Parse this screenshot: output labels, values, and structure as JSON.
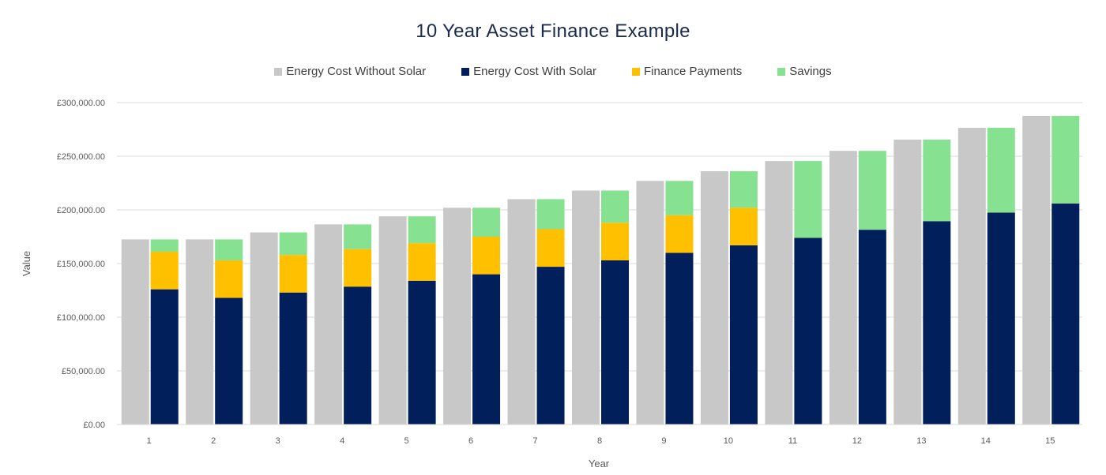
{
  "chart_data": {
    "type": "bar",
    "title": "10 Year Asset Finance Example",
    "xlabel": "Year",
    "ylabel": "Value",
    "ylim": [
      0,
      300000
    ],
    "yticks": [
      "£0.00",
      "£50,000.00",
      "£100,000.00",
      "£150,000.00",
      "£200,000.00",
      "£250,000.00",
      "£300,000.00"
    ],
    "ytick_values": [
      0,
      50000,
      100000,
      150000,
      200000,
      250000,
      300000
    ],
    "grid": true,
    "legend_position": "top",
    "categories": [
      "1",
      "2",
      "3",
      "4",
      "5",
      "6",
      "7",
      "8",
      "9",
      "10",
      "11",
      "12",
      "13",
      "14",
      "15"
    ],
    "series": [
      {
        "name": "Energy Cost Without Solar",
        "color": "#c8c8c8",
        "stack": "a",
        "values": [
          172500,
          172500,
          179000,
          186500,
          194000,
          202000,
          210000,
          218000,
          227000,
          236000,
          245500,
          255000,
          265500,
          276500,
          287500
        ]
      },
      {
        "name": "Energy Cost With Solar",
        "color": "#001f5b",
        "stack": "b",
        "values": [
          126000,
          118000,
          123000,
          128500,
          134000,
          140000,
          147000,
          153000,
          160000,
          167000,
          174000,
          181500,
          189500,
          197500,
          206000
        ]
      },
      {
        "name": "Finance Payments",
        "color": "#ffc000",
        "stack": "b",
        "values": [
          35000,
          35000,
          35000,
          35000,
          35000,
          35000,
          35000,
          35000,
          35000,
          35000,
          0,
          0,
          0,
          0,
          0
        ]
      },
      {
        "name": "Savings",
        "color": "#86e190",
        "stack": "b",
        "values": [
          11500,
          19500,
          21000,
          23000,
          25000,
          27000,
          28000,
          30000,
          32000,
          34000,
          71500,
          73500,
          76000,
          79000,
          81500
        ]
      }
    ]
  }
}
